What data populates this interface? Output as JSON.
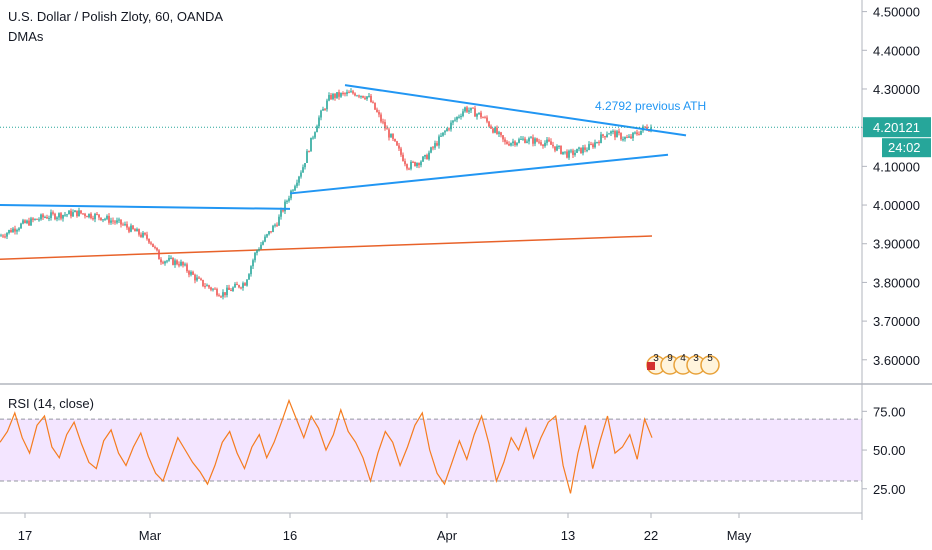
{
  "header": {
    "title": "U.S. Dollar / Polish Zloty, 60, OANDA",
    "indicator": "DMAs",
    "rsi_label": "RSI (14, close)"
  },
  "chart_data": [
    {
      "type": "candlestick",
      "title": "U.S. Dollar / Polish Zloty, 60, OANDA",
      "ylim": [
        3.54,
        4.53
      ],
      "y_ticks": [
        "4.50000",
        "4.40000",
        "4.30000",
        "4.20000",
        "4.10000",
        "4.00000",
        "3.90000",
        "3.80000",
        "3.70000",
        "3.60000"
      ],
      "x_ticks": [
        "17",
        "Mar",
        "16",
        "Apr",
        "13",
        "22",
        "May"
      ],
      "last_price": "4.20121",
      "countdown": "24:02",
      "annotation": "4.2792 previous ATH",
      "event_markers": [
        "3",
        "9",
        "4",
        "3",
        "5"
      ],
      "price_path": [
        [
          "17 Feb",
          3.92
        ],
        [
          "19 Feb",
          3.95
        ],
        [
          "21 Feb",
          3.97
        ],
        [
          "24 Feb",
          3.98
        ],
        [
          "26 Feb",
          3.97
        ],
        [
          "28 Feb",
          3.95
        ],
        [
          "Mar",
          3.91
        ],
        [
          "3 Mar",
          3.86
        ],
        [
          "5 Mar",
          3.85
        ],
        [
          "7 Mar",
          3.8
        ],
        [
          "9 Mar",
          3.77
        ],
        [
          "11 Mar",
          3.8
        ],
        [
          "12 Mar",
          3.88
        ],
        [
          "14 Mar",
          3.96
        ],
        [
          "16 Mar",
          4.03
        ],
        [
          "17 Mar",
          4.1
        ],
        [
          "18 Mar",
          4.22
        ],
        [
          "19 Mar",
          4.28
        ],
        [
          "21 Mar",
          4.29
        ],
        [
          "23 Mar",
          4.28
        ],
        [
          "25 Mar",
          4.2
        ],
        [
          "27 Mar",
          4.1
        ],
        [
          "29 Mar",
          4.12
        ],
        [
          "Apr",
          4.2
        ],
        [
          "3 Apr",
          4.25
        ],
        [
          "5 Apr",
          4.23
        ],
        [
          "7 Apr",
          4.16
        ],
        [
          "9 Apr",
          4.17
        ],
        [
          "11 Apr",
          4.16
        ],
        [
          "13 Apr",
          4.13
        ],
        [
          "15 Apr",
          4.15
        ],
        [
          "17 Apr",
          4.19
        ],
        [
          "19 Apr",
          4.17
        ],
        [
          "21 Apr",
          4.2
        ],
        [
          "22 Apr",
          4.2
        ]
      ],
      "trendlines": [
        {
          "from": [
            "Feb",
            4.0
          ],
          "to": [
            "16 Mar",
            3.99
          ]
        },
        {
          "from": [
            "20 Mar",
            4.31
          ],
          "to": [
            "25 Apr",
            4.18
          ]
        },
        {
          "from": [
            "16 Mar",
            4.03
          ],
          "to": [
            "24 Apr",
            4.13
          ]
        }
      ],
      "moving_average": [
        [
          "Feb",
          3.86
        ],
        [
          "22 Apr",
          3.92
        ]
      ],
      "colors": {
        "up": "#26a69a",
        "down": "#ef5350",
        "trendline": "#2196f3",
        "ma": "#e8622a",
        "last_price_bg": "#26a69a",
        "annotation": "#2196f3"
      }
    },
    {
      "type": "line",
      "title": "RSI (14, close)",
      "ylim": [
        10,
        92
      ],
      "y_ticks": [
        "75.00",
        "50.00",
        "25.00"
      ],
      "band": [
        30,
        70
      ],
      "series": [
        {
          "values": [
            55,
            62,
            74,
            58,
            48,
            66,
            72,
            52,
            45,
            60,
            68,
            54,
            42,
            38,
            56,
            63,
            48,
            40,
            52,
            61,
            46,
            35,
            30,
            44,
            58,
            50,
            42,
            36,
            28,
            40,
            55,
            62,
            48,
            38,
            52,
            60,
            45,
            55,
            68,
            82,
            70,
            58,
            72,
            64,
            50,
            60,
            76,
            62,
            55,
            45,
            30,
            48,
            62,
            55,
            40,
            52,
            66,
            74,
            50,
            35,
            28,
            42,
            56,
            44,
            60,
            72,
            54,
            30,
            42,
            58,
            50,
            64,
            45,
            58,
            68,
            72,
            40,
            22,
            48,
            66,
            38,
            56,
            72,
            48,
            52,
            60,
            44,
            70,
            58
          ]
        }
      ],
      "colors": {
        "line": "#f57c1f",
        "band": "#f3e5ff"
      }
    }
  ]
}
